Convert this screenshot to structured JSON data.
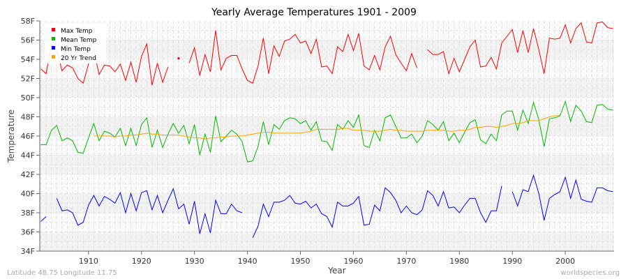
{
  "chart_data": {
    "type": "line",
    "title": "Yearly Average Temperatures 1901 - 2009",
    "xlabel": "Year",
    "ylabel": "Temperature",
    "xlim": [
      1901,
      2009
    ],
    "ylim": [
      34,
      58
    ],
    "y_unit_suffix": "F",
    "x_ticks": [
      1910,
      1920,
      1930,
      1940,
      1950,
      1960,
      1970,
      1980,
      1990,
      2000
    ],
    "y_ticks": [
      34,
      36,
      38,
      40,
      42,
      44,
      46,
      48,
      50,
      52,
      54,
      56,
      58
    ],
    "grid": true,
    "legend_position": "top-left",
    "x_start": 1901,
    "series": [
      {
        "name": "Max Temp",
        "color": "#ff0000",
        "values": [
          53.0,
          52.5,
          55.5,
          55.0,
          52.8,
          53.4,
          53.1,
          52.0,
          51.5,
          53.5,
          55.0,
          52.4,
          53.4,
          53.3,
          52.7,
          53.5,
          51.8,
          53.7,
          51.6,
          54.3,
          55.6,
          51.3,
          53.6,
          51.6,
          53.2,
          null,
          54.1,
          null,
          53.6,
          55.2,
          52.3,
          54.5,
          52.7,
          57.0,
          52.9,
          54.1,
          54.4,
          54.4,
          53.0,
          51.8,
          51.5,
          53.3,
          56.2,
          52.5,
          55.4,
          54.3,
          55.9,
          56.1,
          56.6,
          55.7,
          55.9,
          54.6,
          56.1,
          53.2,
          53.3,
          52.5,
          55.3,
          54.8,
          56.6,
          54.9,
          56.7,
          53.3,
          52.9,
          54.4,
          52.9,
          55.3,
          56.4,
          54.5,
          53.6,
          52.8,
          54.6,
          53.1,
          null,
          55.0,
          54.5,
          54.5,
          54.8,
          52.5,
          54.1,
          52.7,
          54.0,
          55.3,
          56.0,
          53.2,
          53.3,
          54.2,
          53.0,
          55.7,
          56.4,
          57.1,
          54.7,
          57.0,
          54.7,
          57.2,
          55.0,
          52.5,
          56.2,
          56.1,
          56.2,
          57.6,
          55.7,
          57.2,
          57.8,
          55.8,
          55.7,
          57.8,
          57.9,
          57.3,
          57.2
        ]
      },
      {
        "name": "Mean Temp",
        "color": "#00bb00",
        "values": [
          45.1,
          45.1,
          46.6,
          47.1,
          45.5,
          45.8,
          45.5,
          44.3,
          44.2,
          45.8,
          47.3,
          45.5,
          46.5,
          46.3,
          45.9,
          46.8,
          45.0,
          46.8,
          45.0,
          47.2,
          47.9,
          44.8,
          46.6,
          44.8,
          46.2,
          47.3,
          46.3,
          47.1,
          45.2,
          47.2,
          44.0,
          46.2,
          44.3,
          48.1,
          45.4,
          46.0,
          46.6,
          46.2,
          45.4,
          43.3,
          43.4,
          44.9,
          47.5,
          45.1,
          47.2,
          46.7,
          47.6,
          47.9,
          47.8,
          47.3,
          47.6,
          46.6,
          47.5,
          45.5,
          45.4,
          44.5,
          47.2,
          46.7,
          47.6,
          46.9,
          48.2,
          45.0,
          44.8,
          46.6,
          45.5,
          47.9,
          48.2,
          47.0,
          45.8,
          45.8,
          46.2,
          45.3,
          46.0,
          47.6,
          47.2,
          46.6,
          47.5,
          45.5,
          46.3,
          45.3,
          46.4,
          47.4,
          47.7,
          45.6,
          45.2,
          46.2,
          45.5,
          48.2,
          48.6,
          48.6,
          46.6,
          48.7,
          47.3,
          49.5,
          47.7,
          44.9,
          47.8,
          47.9,
          48.1,
          49.6,
          47.5,
          49.2,
          48.6,
          47.5,
          47.4,
          49.2,
          49.3,
          48.8,
          48.7
        ]
      },
      {
        "name": "Min Temp",
        "color": "#0000ff",
        "values": [
          37.1,
          37.6,
          null,
          39.5,
          38.2,
          38.3,
          38.0,
          36.7,
          37.0,
          38.8,
          39.8,
          38.7,
          39.7,
          39.4,
          39.0,
          40.1,
          38.0,
          40.0,
          38.2,
          40.1,
          40.3,
          38.3,
          39.8,
          38.0,
          39.3,
          40.5,
          38.4,
          38.9,
          36.8,
          39.2,
          35.8,
          37.9,
          35.9,
          39.3,
          37.9,
          37.9,
          38.9,
          38.2,
          38.0,
          null,
          35.4,
          36.6,
          38.9,
          37.6,
          39.1,
          39.1,
          39.3,
          39.8,
          39.0,
          38.9,
          39.2,
          38.5,
          38.9,
          37.9,
          37.6,
          36.5,
          39.1,
          38.7,
          38.7,
          39.0,
          39.7,
          36.7,
          36.8,
          38.8,
          38.2,
          40.6,
          40.1,
          39.3,
          38.0,
          38.7,
          38.0,
          37.8,
          38.3,
          40.3,
          39.8,
          38.7,
          40.2,
          38.5,
          38.6,
          38.0,
          38.8,
          39.5,
          39.5,
          38.0,
          37.0,
          38.2,
          38.2,
          40.8,
          null,
          40.2,
          38.7,
          40.4,
          40.2,
          41.9,
          40.0,
          37.2,
          39.5,
          39.9,
          40.2,
          41.7,
          39.5,
          41.4,
          39.4,
          39.2,
          39.1,
          40.6,
          40.6,
          40.3,
          40.2
        ]
      },
      {
        "name": "20 Yr Trend",
        "color": "#ffa500",
        "x_start": 1911,
        "values": [
          46.0,
          46.0,
          46.0,
          46.0,
          45.9,
          46.0,
          46.0,
          46.1,
          46.1,
          46.2,
          46.3,
          46.2,
          46.2,
          46.1,
          46.1,
          46.1,
          46.1,
          46.0,
          45.9,
          45.8,
          45.8,
          45.7,
          45.8,
          45.8,
          45.9,
          45.9,
          46.0,
          46.0,
          46.0,
          46.1,
          46.2,
          46.3,
          46.4,
          46.4,
          46.3,
          46.3,
          46.3,
          46.3,
          46.3,
          46.3,
          46.4,
          46.5,
          46.7,
          46.7,
          46.7,
          46.7,
          46.7,
          46.8,
          46.8,
          46.6,
          46.6,
          46.6,
          46.5,
          46.5,
          46.5,
          46.6,
          46.7,
          46.6,
          46.6,
          46.5,
          46.5,
          46.5,
          46.5,
          46.6,
          46.6,
          46.6,
          46.6,
          46.5,
          46.5,
          46.6,
          46.6,
          46.7,
          46.9,
          46.9,
          47.0,
          47.0,
          46.9,
          47.0,
          47.1,
          47.3,
          47.3,
          47.4,
          47.6,
          47.6,
          47.6,
          47.8,
          48.0,
          48.1,
          48.2
        ]
      }
    ]
  },
  "footer": {
    "location": "Latitude 48.75 Longitude 11.75",
    "source": "worldspecies.org"
  }
}
